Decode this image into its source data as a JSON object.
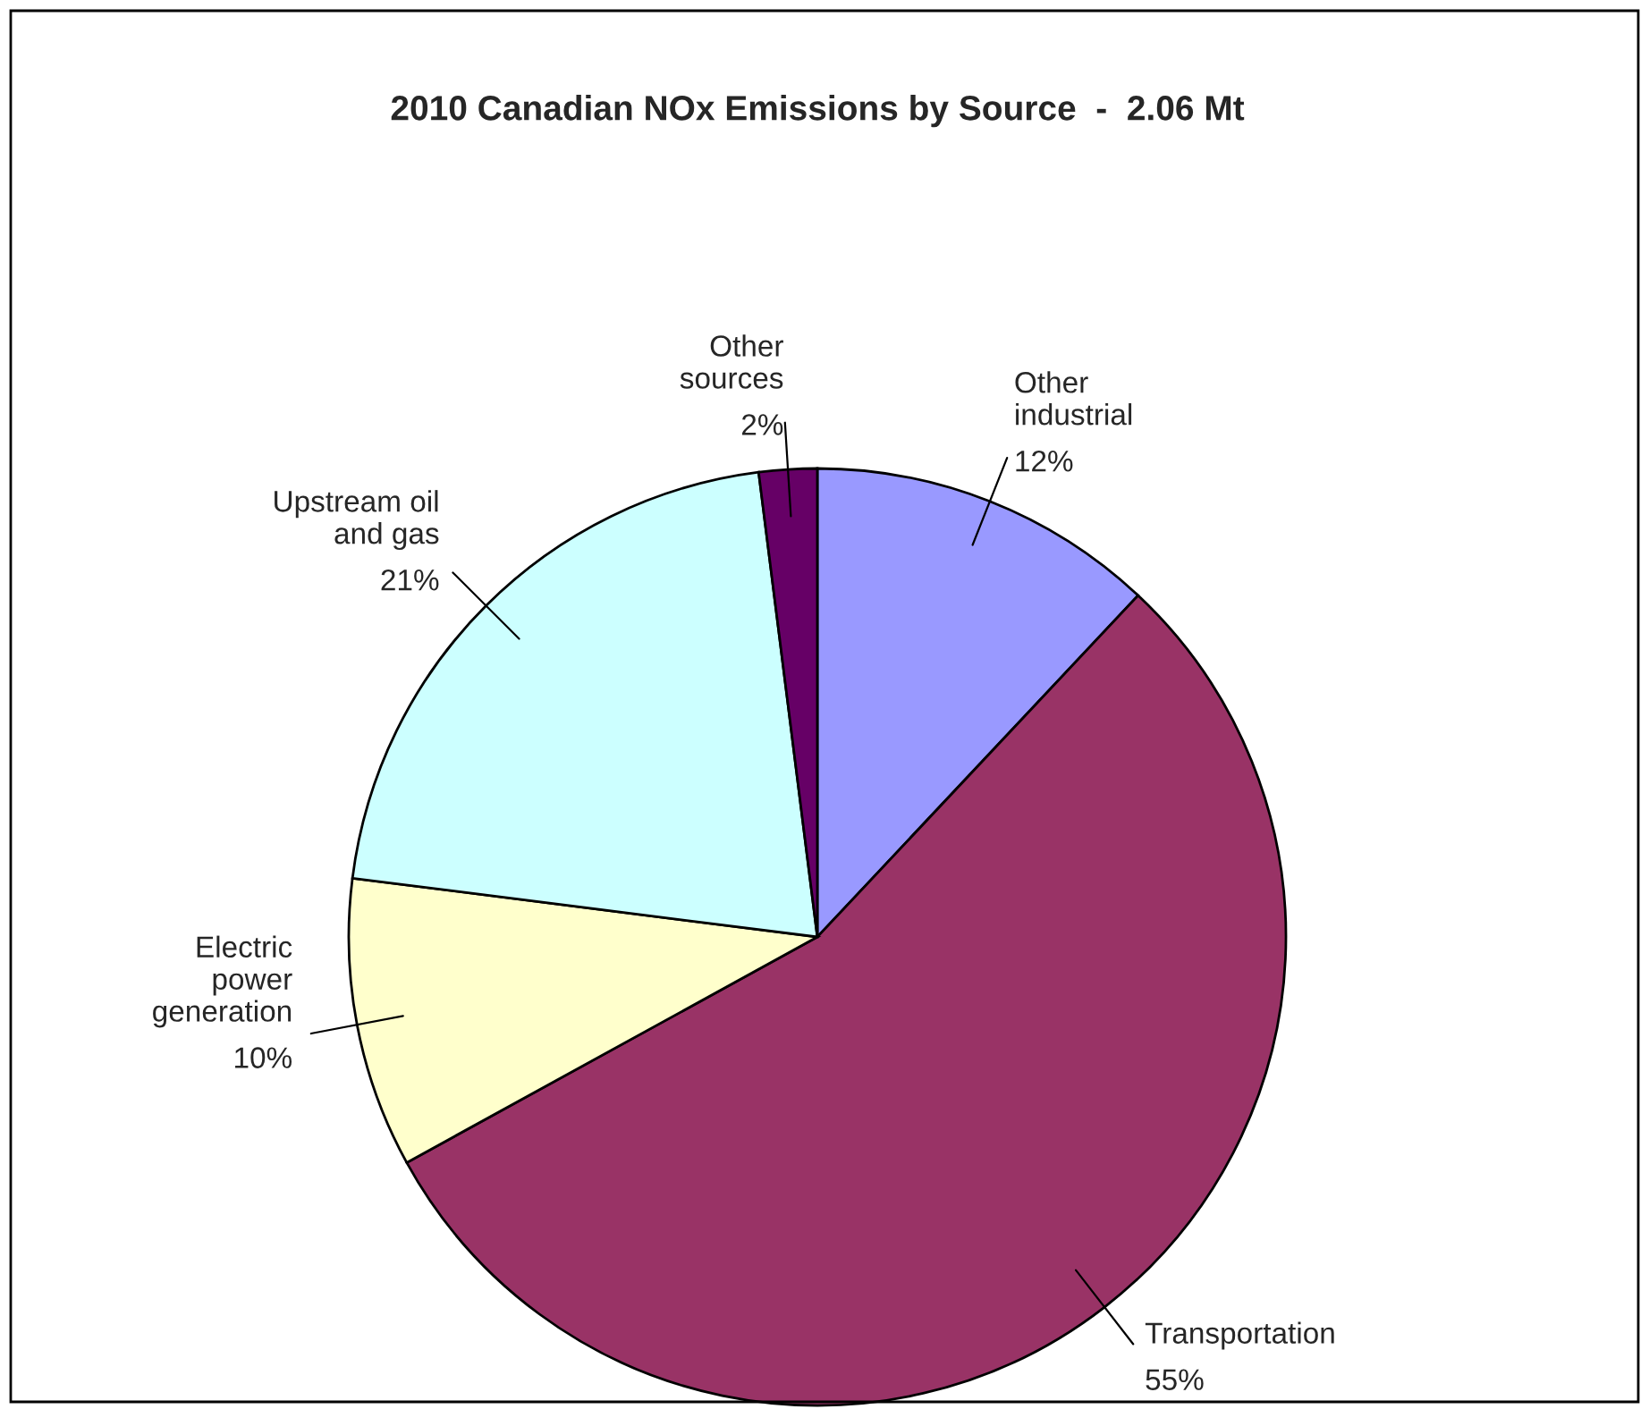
{
  "chart_data": {
    "type": "pie",
    "title": "2010 Canadian NOx Emissions by Source  -  2.06 Mt",
    "categories": [
      "Other\nindustrial",
      "Transportation",
      "Electric\npower\ngeneration",
      "Upstream oil\nand gas",
      "Other\nsources"
    ],
    "values": [
      12,
      55,
      10,
      21,
      2
    ],
    "colors": [
      "#9999ff",
      "#993366",
      "#ffffcc",
      "#ccffff",
      "#660066"
    ],
    "value_labels": [
      "12%",
      "55%",
      "10%",
      "21%",
      "2%"
    ]
  }
}
